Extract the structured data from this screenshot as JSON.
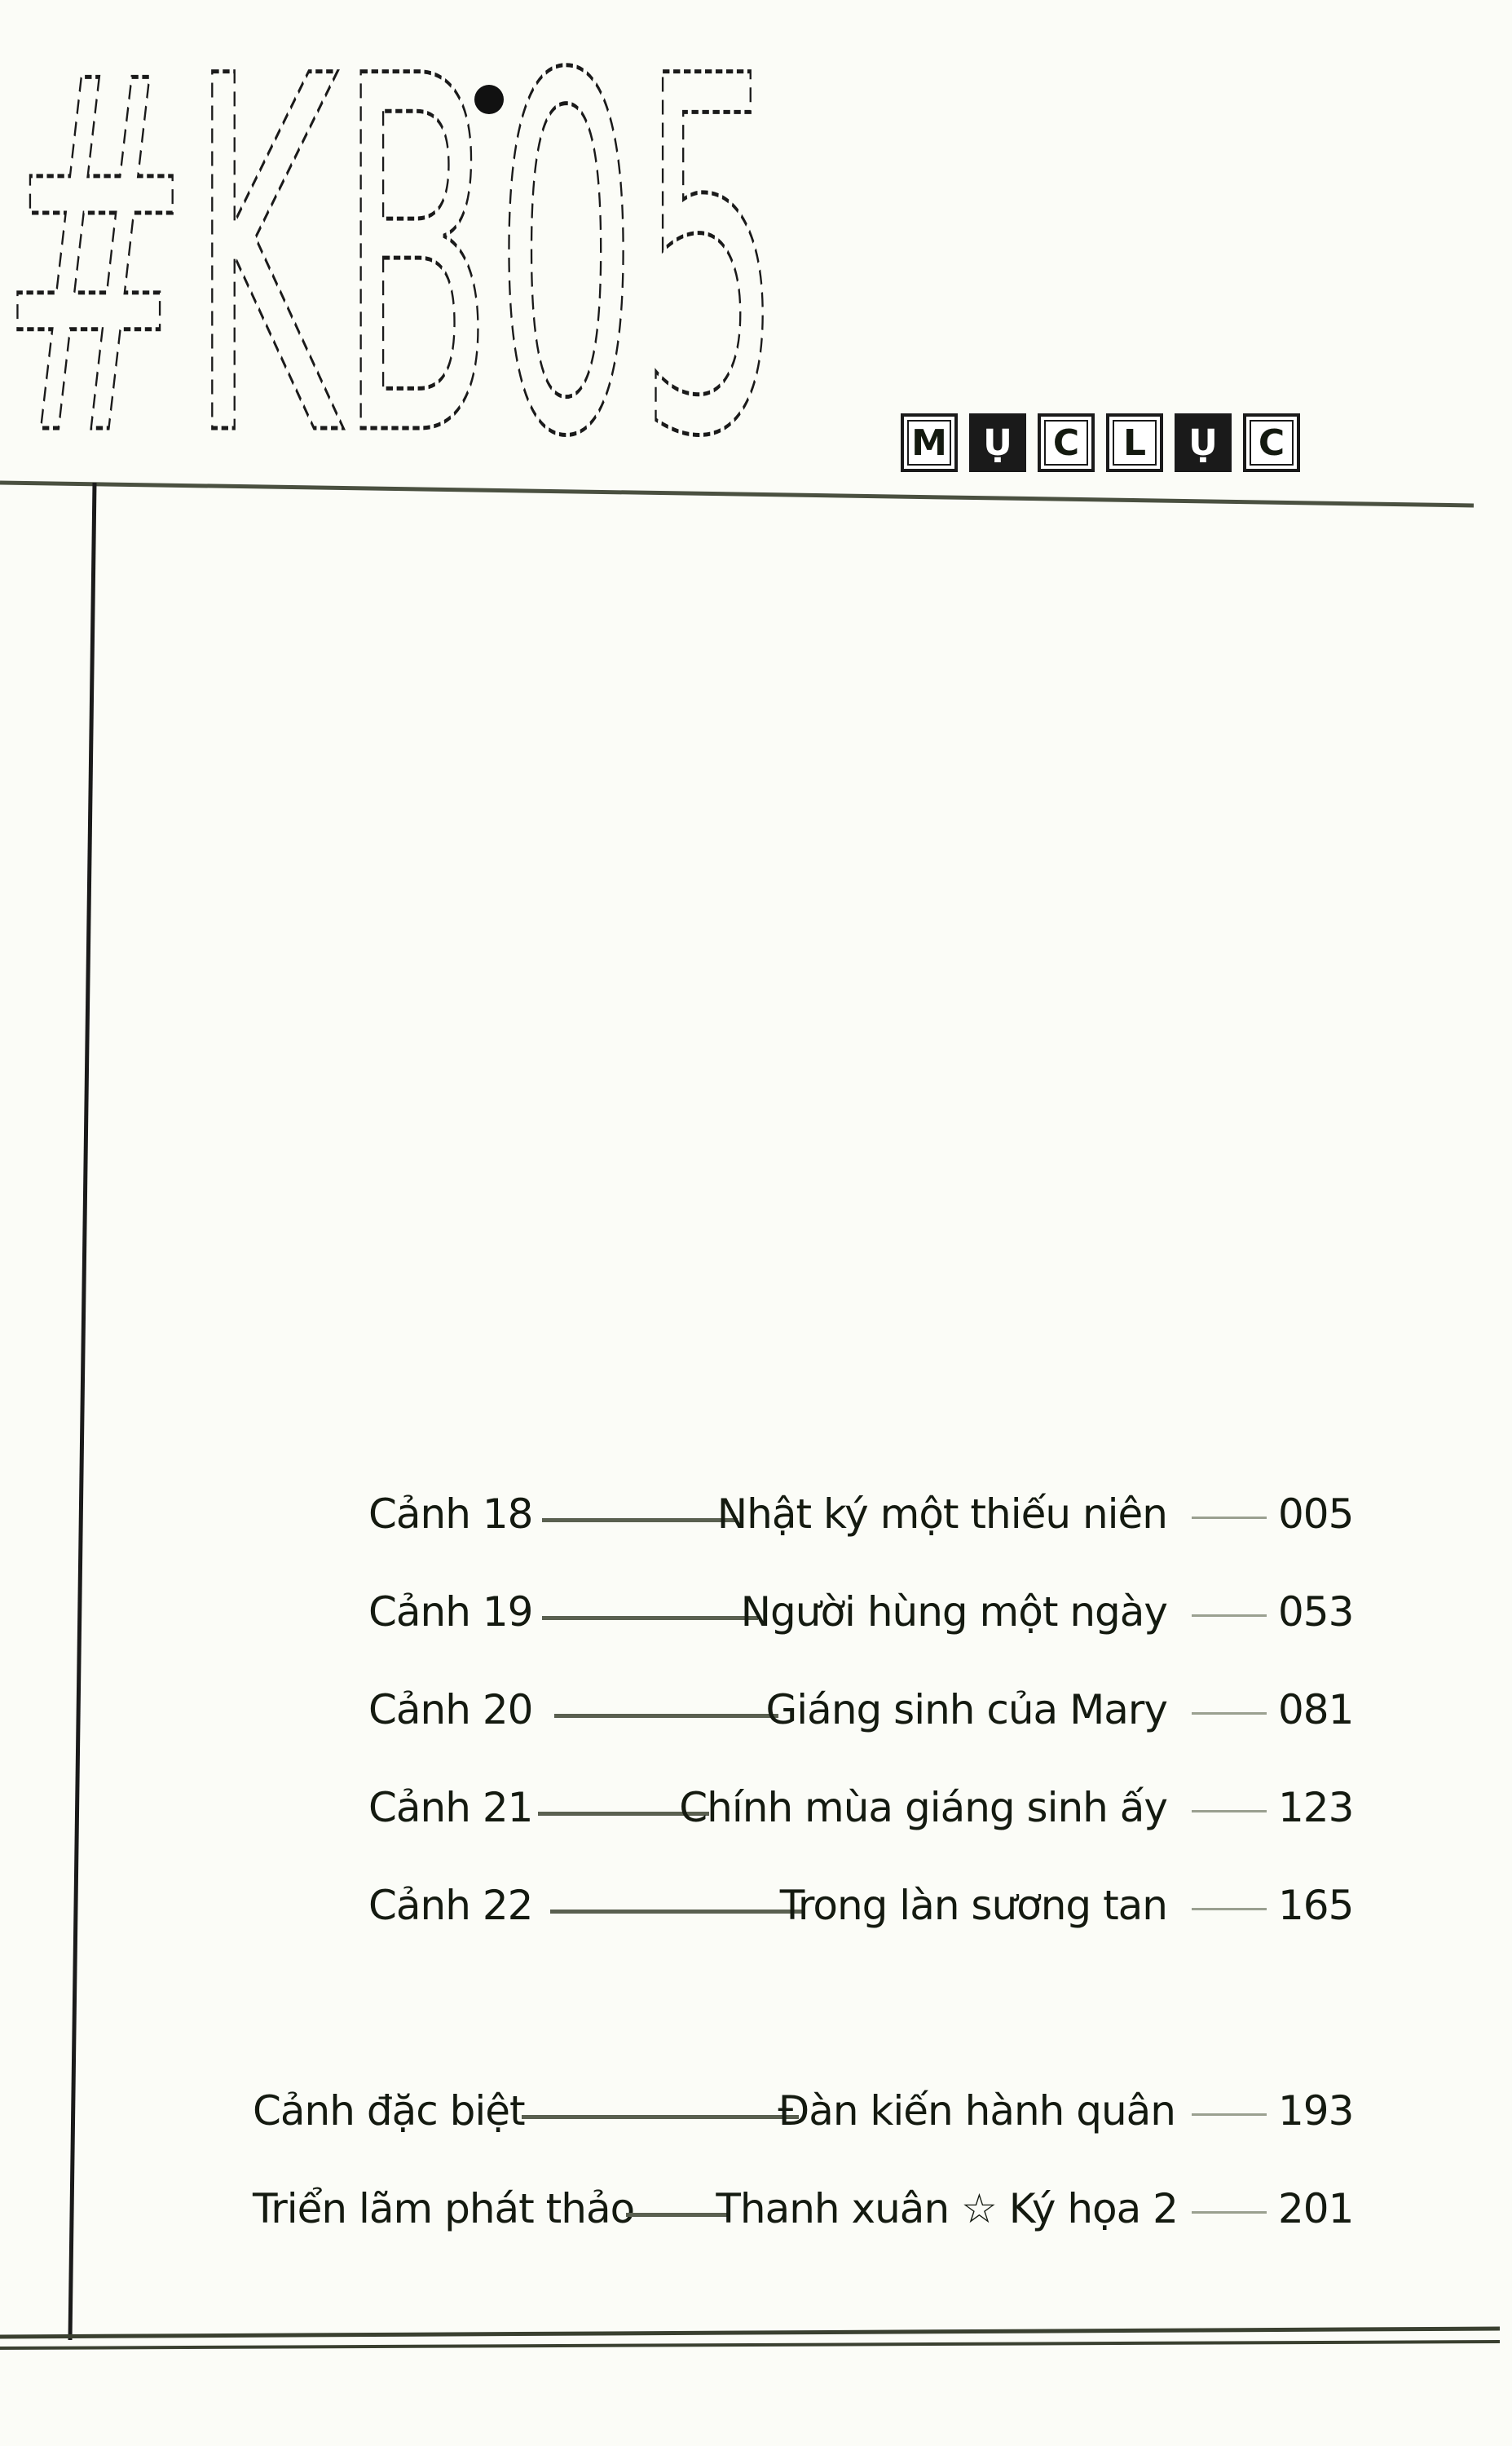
{
  "header": {
    "book_code": "#KB05",
    "toc_heading_letters": [
      "M",
      "Ụ",
      "C",
      "L",
      "Ụ",
      "C"
    ],
    "toc_heading_filled": [
      false,
      true,
      false,
      false,
      true,
      false
    ]
  },
  "chapters": [
    {
      "label": "Cảnh 18",
      "title": "Nhật ký một thiếu niên",
      "page": "005"
    },
    {
      "label": "Cảnh 19",
      "title": "Người hùng một ngày",
      "page": "053"
    },
    {
      "label": "Cảnh 20",
      "title": "Giáng sinh của Mary",
      "page": "081"
    },
    {
      "label": "Cảnh 21",
      "title": "Chính mùa giáng sinh ấy",
      "page": "123"
    },
    {
      "label": "Cảnh 22",
      "title": "Trong làn sương tan",
      "page": "165"
    }
  ],
  "extras": [
    {
      "label": "Cảnh đặc biệt",
      "title": "Đàn kiến hành quân",
      "page": "193"
    },
    {
      "label": "Triển lãm phát thảo",
      "title": "Thanh xuân ☆ Ký họa 2",
      "page": "201"
    }
  ],
  "colors": {
    "ink": "#141a10",
    "paper": "#fbfcf7",
    "rule": "#5a6050"
  }
}
